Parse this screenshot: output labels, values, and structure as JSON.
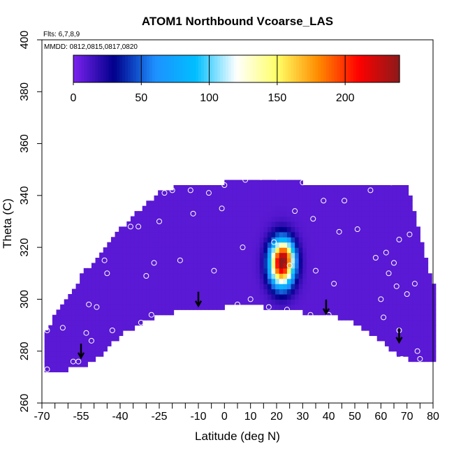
{
  "chart_data": {
    "type": "heatmap",
    "title": "ATOM1 Northbound Vcoarse_LAS",
    "annotations": {
      "flights": "Flts: 6,7,8,9",
      "dates": "MMDD: 0812,0815,0817,0820"
    },
    "xlabel": "Latitude (deg N)",
    "ylabel": "Theta (C)",
    "xlim": [
      -70,
      80
    ],
    "ylim": [
      260,
      400
    ],
    "x_ticks": [
      -70,
      -55,
      -40,
      -25,
      -10,
      0,
      10,
      20,
      30,
      40,
      50,
      60,
      70,
      80
    ],
    "x_minor_step": 5,
    "y_ticks": [
      260,
      280,
      300,
      320,
      340,
      360,
      380,
      400
    ],
    "colorbar": {
      "min": 0,
      "max": 240,
      "ticks": [
        0,
        50,
        100,
        150,
        200
      ],
      "stops": [
        "#7b22ee",
        "#00008b",
        "#1e90ff",
        "#00bfff",
        "#ffffff",
        "#ffff66",
        "#ff8c00",
        "#ff0000",
        "#8b1a1a"
      ]
    },
    "background_value": 8,
    "domain_top": [
      [
        -69,
        287
      ],
      [
        -66,
        292
      ],
      [
        -62,
        298
      ],
      [
        -58,
        304
      ],
      [
        -55,
        309
      ],
      [
        -50,
        315
      ],
      [
        -45,
        321
      ],
      [
        -40,
        327
      ],
      [
        -35,
        332
      ],
      [
        -30,
        337
      ],
      [
        -25,
        341
      ],
      [
        -20,
        343
      ],
      [
        -10,
        344
      ],
      [
        0,
        345
      ],
      [
        8,
        346
      ],
      [
        18,
        346
      ],
      [
        30,
        345
      ],
      [
        40,
        344
      ],
      [
        50,
        344
      ],
      [
        60,
        344
      ],
      [
        70,
        343
      ],
      [
        72,
        337
      ],
      [
        74,
        330
      ],
      [
        76,
        320
      ],
      [
        78,
        314
      ],
      [
        79,
        308
      ],
      [
        80,
        305
      ]
    ],
    "domain_bottom": [
      [
        -69,
        272
      ],
      [
        -66,
        273
      ],
      [
        -60,
        273
      ],
      [
        -55,
        274
      ],
      [
        -50,
        276
      ],
      [
        -45,
        281
      ],
      [
        -40,
        286
      ],
      [
        -35,
        289
      ],
      [
        -30,
        292
      ],
      [
        -25,
        294
      ],
      [
        -20,
        295
      ],
      [
        -10,
        296
      ],
      [
        0,
        297
      ],
      [
        10,
        298
      ],
      [
        20,
        296
      ],
      [
        30,
        295
      ],
      [
        40,
        294
      ],
      [
        50,
        291
      ],
      [
        60,
        284
      ],
      [
        65,
        280
      ],
      [
        70,
        277
      ],
      [
        75,
        276
      ],
      [
        80,
        276
      ]
    ],
    "blobs": [
      {
        "lat": 22,
        "theta": 314,
        "slat": 3.2,
        "stheta": 6,
        "amp": 230
      },
      {
        "lat": 24,
        "theta": 318,
        "slat": 2,
        "stheta": 3,
        "amp": 30
      }
    ],
    "sample_points": [
      [
        -68,
        288
      ],
      [
        -68,
        273
      ],
      [
        -62,
        289
      ],
      [
        -58,
        276
      ],
      [
        -56,
        276
      ],
      [
        -53,
        287
      ],
      [
        -52,
        298
      ],
      [
        -51,
        284
      ],
      [
        -49,
        297
      ],
      [
        -43,
        288
      ],
      [
        -46,
        315
      ],
      [
        -45,
        310
      ],
      [
        -36,
        328
      ],
      [
        -33,
        328
      ],
      [
        -32,
        291
      ],
      [
        -30,
        309
      ],
      [
        -28,
        294
      ],
      [
        -27,
        314
      ],
      [
        -25,
        330
      ],
      [
        -23,
        341
      ],
      [
        -20,
        342
      ],
      [
        -17,
        315
      ],
      [
        -13,
        342
      ],
      [
        -12,
        333
      ],
      [
        -6,
        341
      ],
      [
        -4,
        311
      ],
      [
        -1,
        335
      ],
      [
        0,
        344
      ],
      [
        5,
        298
      ],
      [
        7,
        320
      ],
      [
        8,
        346
      ],
      [
        10,
        300
      ],
      [
        14,
        347
      ],
      [
        17,
        297
      ],
      [
        19,
        322
      ],
      [
        20,
        347
      ],
      [
        24,
        296
      ],
      [
        25,
        313
      ],
      [
        27,
        334
      ],
      [
        30,
        345
      ],
      [
        33,
        294
      ],
      [
        34,
        331
      ],
      [
        35,
        311
      ],
      [
        38,
        338
      ],
      [
        40,
        294
      ],
      [
        42,
        306
      ],
      [
        44,
        326
      ],
      [
        46,
        338
      ],
      [
        51,
        327
      ],
      [
        56,
        342
      ],
      [
        58,
        316
      ],
      [
        60,
        300
      ],
      [
        61,
        293
      ],
      [
        62,
        318
      ],
      [
        63,
        310
      ],
      [
        64,
        345
      ],
      [
        65,
        314
      ],
      [
        65,
        278
      ],
      [
        66,
        305
      ],
      [
        67,
        323
      ],
      [
        67,
        288
      ],
      [
        68,
        277
      ],
      [
        70,
        302
      ],
      [
        71,
        325
      ],
      [
        73,
        306
      ],
      [
        74,
        280
      ],
      [
        75,
        277
      ]
    ],
    "arrows": [
      [
        -55,
        280
      ],
      [
        -10,
        300
      ],
      [
        39,
        297
      ],
      [
        67,
        286
      ]
    ]
  }
}
